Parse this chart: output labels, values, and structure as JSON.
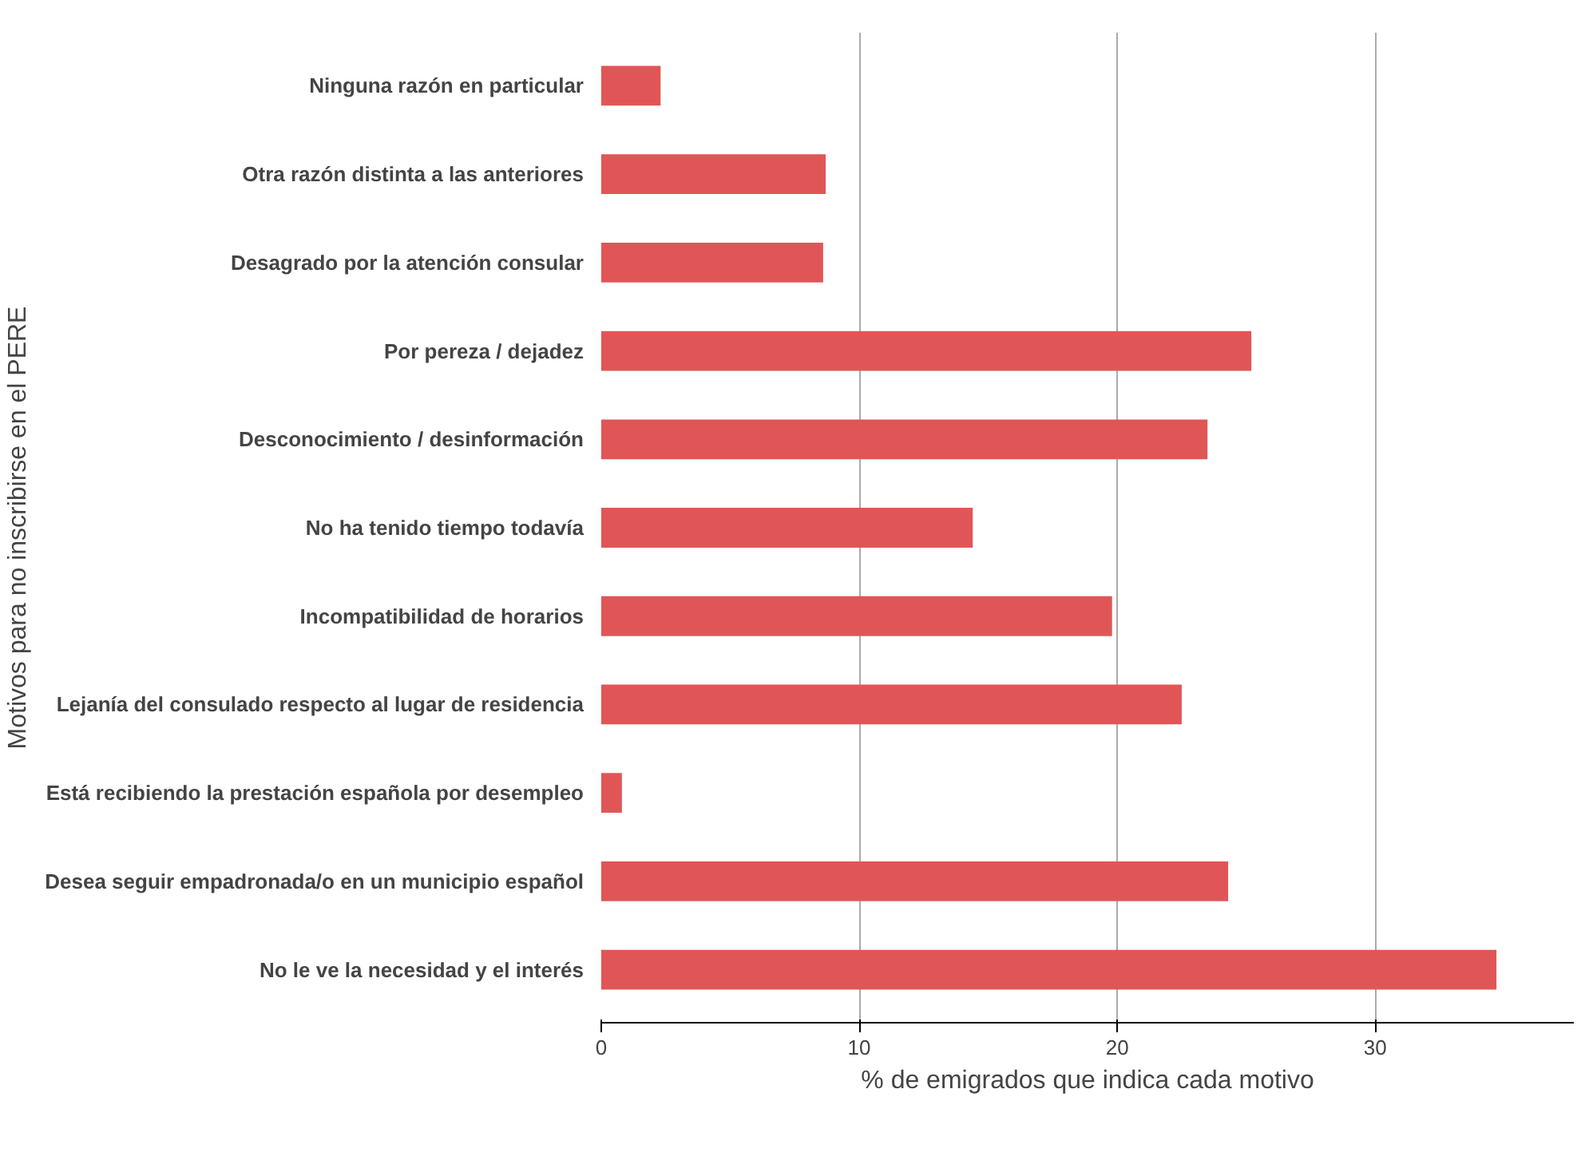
{
  "chart_data": {
    "type": "bar",
    "orientation": "horizontal",
    "categories": [
      "Ninguna razón en particular",
      "Otra razón distinta a las anteriores",
      "Desagrado por la atención consular",
      "Por pereza / dejadez",
      "Desconocimiento / desinformación",
      "No ha tenido tiempo todavía",
      "Incompatibilidad de horarios",
      "Lejanía del consulado respecto al lugar de residencia",
      "Está recibiendo la prestación española por desempleo",
      "Desea seguir empadronada/o en un municipio español",
      "No le ve la necesidad y el interés"
    ],
    "values": [
      2.3,
      8.7,
      8.6,
      25.2,
      23.5,
      14.4,
      19.8,
      22.5,
      0.8,
      24.3,
      34.7
    ],
    "color": "#e05656",
    "xlim": [
      0,
      37.7
    ],
    "xticks": [
      0,
      10,
      20,
      30
    ],
    "xlabel": "% de emigrados que indica cada motivo",
    "ylabel": "Motivos para no inscribirse en el PERE",
    "grid": "x"
  }
}
